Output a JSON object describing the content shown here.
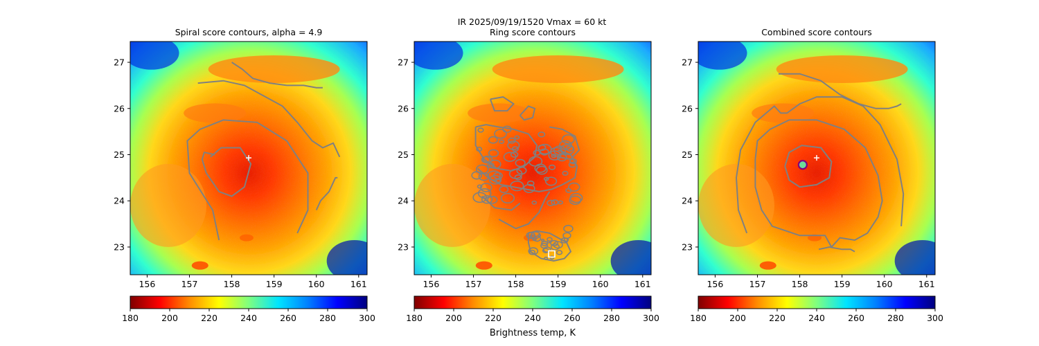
{
  "suptitle": {
    "line1": "IR  2025/09/19/1520    Vmax = 60 kt"
  },
  "colorbar_label": "Brightness temp, K",
  "colormap": [
    "#7f0000",
    "#ff0000",
    "#ff8c00",
    "#ffff00",
    "#7fff7f",
    "#00e5ff",
    "#0080ff",
    "#0000ff",
    "#00007f"
  ],
  "marker_colors": {
    "center_plus": "#ffffff",
    "contour": "#808080",
    "ring_marker": "#800080",
    "ring_fill": "#6ddc9a",
    "square_marker": "#ffffff"
  },
  "chart_data": [
    {
      "type": "heatmap",
      "title": "Spiral score contours, alpha =  4.9",
      "xlim": [
        155.6,
        161.2
      ],
      "ylim": [
        22.4,
        27.45
      ],
      "xticks": [
        "156",
        "157",
        "158",
        "159",
        "160",
        "161"
      ],
      "yticks": [
        "23",
        "24",
        "25",
        "26",
        "27"
      ],
      "colorbar": {
        "vmin": 180,
        "vmax": 300,
        "ticks": [
          "180",
          "200",
          "220",
          "240",
          "260",
          "280",
          "300"
        ]
      },
      "center_marker": {
        "x": 158.4,
        "y": 24.93
      },
      "contours": [
        [
          [
            157.5,
            24.95
          ],
          [
            157.75,
            25.15
          ],
          [
            158.2,
            25.15
          ],
          [
            158.45,
            24.8
          ],
          [
            158.3,
            24.3
          ],
          [
            158.0,
            24.1
          ],
          [
            157.7,
            24.2
          ],
          [
            157.4,
            24.6
          ],
          [
            157.3,
            24.9
          ],
          [
            157.35,
            25.05
          ],
          [
            157.6,
            25.0
          ]
        ],
        [
          [
            157.7,
            23.15
          ],
          [
            157.55,
            23.8
          ],
          [
            157.0,
            24.6
          ],
          [
            156.95,
            25.3
          ],
          [
            157.25,
            25.55
          ],
          [
            157.8,
            25.75
          ],
          [
            158.6,
            25.7
          ],
          [
            159.3,
            25.3
          ],
          [
            159.8,
            24.6
          ],
          [
            159.8,
            23.8
          ],
          [
            159.55,
            23.3
          ]
        ],
        [
          [
            157.2,
            26.55
          ],
          [
            157.8,
            26.6
          ],
          [
            158.3,
            26.5
          ],
          [
            158.7,
            26.3
          ],
          [
            159.2,
            26.05
          ],
          [
            159.55,
            25.7
          ],
          [
            159.9,
            25.3
          ],
          [
            160.15,
            25.15
          ],
          [
            160.4,
            25.25
          ],
          [
            160.55,
            24.95
          ]
        ],
        [
          [
            158.0,
            27.0
          ],
          [
            158.25,
            26.85
          ],
          [
            158.5,
            26.65
          ],
          [
            158.9,
            26.55
          ],
          [
            159.3,
            26.5
          ],
          [
            159.7,
            26.5
          ],
          [
            160.0,
            26.45
          ],
          [
            160.15,
            26.45
          ]
        ],
        [
          [
            160.0,
            23.8
          ],
          [
            160.1,
            24.0
          ],
          [
            160.3,
            24.2
          ],
          [
            160.45,
            24.5
          ],
          [
            160.5,
            24.5
          ]
        ]
      ]
    },
    {
      "type": "heatmap",
      "title": "Ring score contours",
      "xlim": [
        155.6,
        161.2
      ],
      "ylim": [
        22.4,
        27.45
      ],
      "xticks": [
        "156",
        "157",
        "158",
        "159",
        "160",
        "161"
      ],
      "yticks": [
        "23",
        "24",
        "25",
        "26",
        "27"
      ],
      "colorbar": {
        "vmin": 180,
        "vmax": 300,
        "ticks": [
          "180",
          "200",
          "220",
          "240",
          "260",
          "280",
          "300"
        ]
      },
      "square_marker": {
        "x": 158.85,
        "y": 22.85
      },
      "contours": [
        [
          [
            157.05,
            25.6
          ],
          [
            157.3,
            25.65
          ],
          [
            157.6,
            25.6
          ],
          [
            157.95,
            25.55
          ],
          [
            158.3,
            25.45
          ],
          [
            158.5,
            25.2
          ],
          [
            158.45,
            24.95
          ],
          [
            158.2,
            24.75
          ],
          [
            157.9,
            24.65
          ],
          [
            157.55,
            24.7
          ],
          [
            157.25,
            24.9
          ],
          [
            157.05,
            25.2
          ],
          [
            157.05,
            25.6
          ]
        ],
        [
          [
            157.1,
            24.7
          ],
          [
            157.35,
            24.5
          ],
          [
            157.65,
            24.35
          ],
          [
            157.95,
            24.3
          ],
          [
            158.25,
            24.25
          ],
          [
            158.55,
            24.2
          ],
          [
            158.85,
            24.25
          ],
          [
            159.1,
            24.35
          ],
          [
            159.4,
            24.5
          ],
          [
            159.45,
            24.75
          ],
          [
            159.3,
            25.0
          ],
          [
            159.0,
            25.1
          ]
        ],
        [
          [
            158.8,
            25.6
          ],
          [
            159.1,
            25.55
          ],
          [
            159.4,
            25.4
          ],
          [
            159.5,
            25.1
          ],
          [
            159.3,
            24.9
          ],
          [
            159.0,
            24.95
          ]
        ],
        [
          [
            157.2,
            24.1
          ],
          [
            157.5,
            23.85
          ],
          [
            157.9,
            23.8
          ],
          [
            158.1,
            23.95
          ]
        ],
        [
          [
            157.6,
            23.6
          ],
          [
            158.0,
            23.4
          ],
          [
            158.3,
            23.5
          ],
          [
            158.55,
            23.75
          ],
          [
            158.7,
            24.05
          ],
          [
            158.8,
            24.2
          ]
        ],
        [
          [
            158.3,
            23.3
          ],
          [
            158.5,
            23.35
          ],
          [
            158.8,
            23.3
          ],
          [
            159.0,
            23.2
          ],
          [
            159.2,
            23.1
          ],
          [
            159.3,
            22.9
          ],
          [
            159.15,
            22.75
          ],
          [
            158.9,
            22.7
          ],
          [
            158.6,
            22.75
          ],
          [
            158.35,
            22.9
          ],
          [
            158.3,
            23.1
          ],
          [
            158.3,
            23.3
          ]
        ],
        [
          [
            158.1,
            25.85
          ],
          [
            158.3,
            26.05
          ],
          [
            158.45,
            26.0
          ],
          [
            158.4,
            25.8
          ],
          [
            158.2,
            25.75
          ],
          [
            158.1,
            25.85
          ]
        ],
        [
          [
            157.4,
            26.2
          ],
          [
            157.7,
            26.25
          ],
          [
            157.95,
            26.1
          ],
          [
            157.8,
            25.95
          ],
          [
            157.5,
            25.95
          ],
          [
            157.4,
            26.2
          ]
        ]
      ]
    },
    {
      "type": "heatmap",
      "title": "Combined score contours",
      "xlim": [
        155.6,
        161.2
      ],
      "ylim": [
        22.4,
        27.45
      ],
      "xticks": [
        "156",
        "157",
        "158",
        "159",
        "160",
        "161"
      ],
      "yticks": [
        "23",
        "24",
        "25",
        "26",
        "27"
      ],
      "colorbar": {
        "vmin": 180,
        "vmax": 300,
        "ticks": [
          "180",
          "200",
          "220",
          "240",
          "260",
          "280",
          "300"
        ]
      },
      "center_marker": {
        "x": 158.4,
        "y": 24.93
      },
      "ring_marker": {
        "x": 158.07,
        "y": 24.78
      },
      "contours": [
        [
          [
            157.65,
            24.75
          ],
          [
            157.75,
            25.05
          ],
          [
            158.05,
            25.2
          ],
          [
            158.5,
            25.15
          ],
          [
            158.75,
            24.85
          ],
          [
            158.7,
            24.5
          ],
          [
            158.4,
            24.35
          ],
          [
            158.0,
            24.3
          ],
          [
            157.75,
            24.45
          ],
          [
            157.65,
            24.75
          ]
        ],
        [
          [
            156.95,
            24.9
          ],
          [
            157.0,
            25.3
          ],
          [
            157.3,
            25.55
          ],
          [
            157.75,
            25.75
          ],
          [
            158.4,
            25.75
          ],
          [
            159.05,
            25.55
          ],
          [
            159.55,
            25.15
          ],
          [
            159.85,
            24.55
          ],
          [
            159.95,
            24.0
          ],
          [
            159.85,
            23.65
          ],
          [
            159.6,
            23.3
          ],
          [
            159.3,
            23.15
          ],
          [
            158.95,
            23.2
          ],
          [
            158.75,
            23.0
          ],
          [
            158.6,
            23.25
          ],
          [
            158.0,
            23.25
          ],
          [
            157.35,
            23.45
          ],
          [
            157.1,
            23.8
          ],
          [
            156.95,
            24.3
          ],
          [
            156.95,
            24.9
          ]
        ],
        [
          [
            156.75,
            23.3
          ],
          [
            156.55,
            23.8
          ],
          [
            156.5,
            24.5
          ],
          [
            156.6,
            25.1
          ],
          [
            156.95,
            25.7
          ],
          [
            157.4,
            26.05
          ],
          [
            157.55,
            25.9
          ],
          [
            157.7,
            25.9
          ],
          [
            158.0,
            26.1
          ],
          [
            158.4,
            26.25
          ],
          [
            159.0,
            26.25
          ],
          [
            159.5,
            26.05
          ],
          [
            159.9,
            25.65
          ],
          [
            160.3,
            24.9
          ],
          [
            160.45,
            24.15
          ],
          [
            160.4,
            23.45
          ]
        ],
        [
          [
            157.5,
            26.75
          ],
          [
            158.0,
            26.75
          ],
          [
            158.5,
            26.6
          ],
          [
            158.95,
            26.3
          ],
          [
            159.4,
            26.1
          ],
          [
            159.8,
            26.0
          ],
          [
            160.1,
            26.0
          ],
          [
            160.3,
            26.05
          ],
          [
            160.4,
            26.1
          ]
        ],
        [
          [
            158.45,
            22.95
          ],
          [
            158.7,
            23.0
          ],
          [
            159.0,
            22.95
          ],
          [
            159.2,
            22.95
          ],
          [
            159.3,
            22.9
          ]
        ]
      ]
    }
  ]
}
